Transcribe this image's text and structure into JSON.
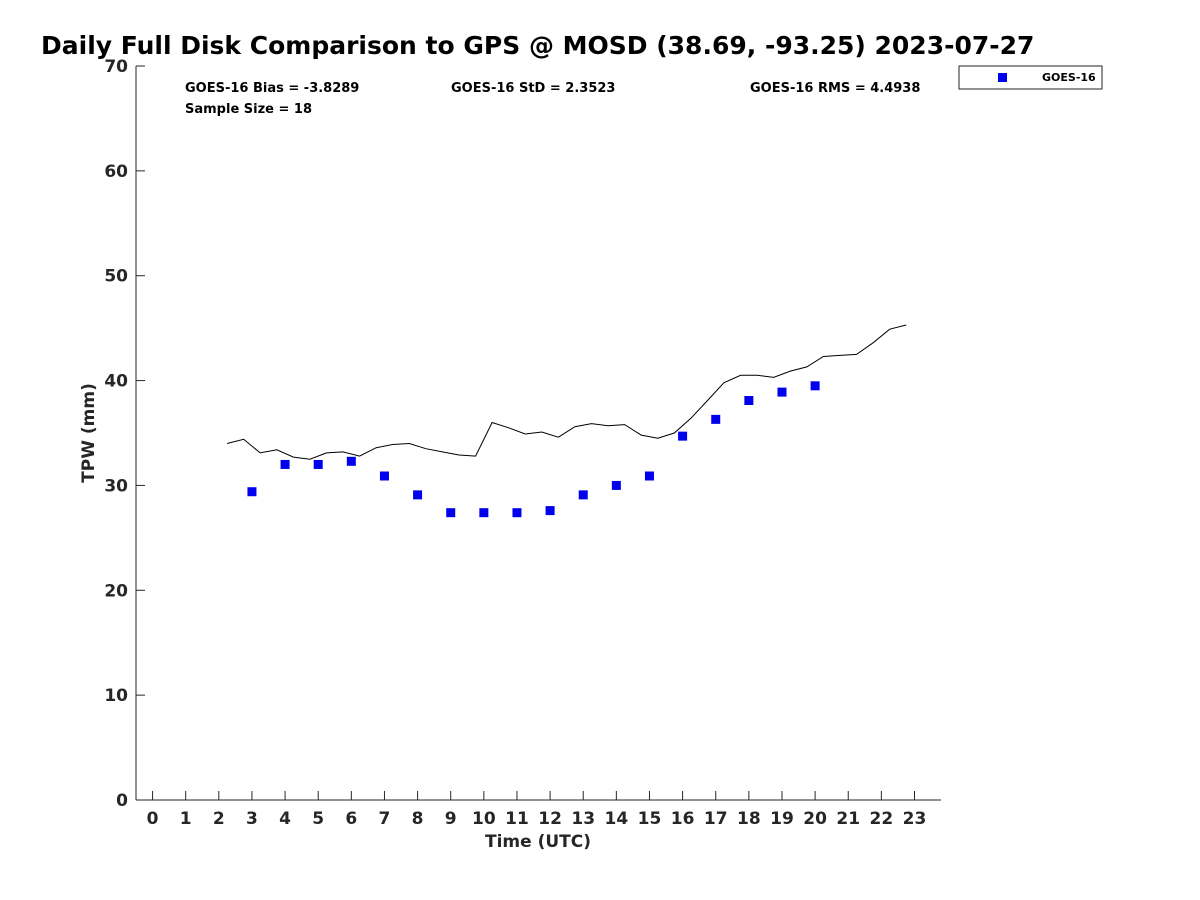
{
  "chart_data": {
    "type": "line+scatter",
    "title": "Daily Full Disk Comparison to GPS @ MOSD (38.69, -93.25) 2023-07-27",
    "xlabel": "Time (UTC)",
    "ylabel": "TPW (mm)",
    "xlim": [
      -0.5,
      23.8
    ],
    "ylim": [
      0,
      70
    ],
    "xticks": [
      0,
      1,
      2,
      3,
      4,
      5,
      6,
      7,
      8,
      9,
      10,
      11,
      12,
      13,
      14,
      15,
      16,
      17,
      18,
      19,
      20,
      21,
      22,
      23
    ],
    "yticks": [
      0,
      10,
      20,
      30,
      40,
      50,
      60,
      70
    ],
    "grid": false,
    "legend_position": "top-right (outside)",
    "stats": {
      "bias": "GOES-16 Bias = -3.8289",
      "std": "GOES-16 StD = 2.3523",
      "rms": "GOES-16 RMS = 4.4938",
      "sample": "Sample Size = 18"
    },
    "series": [
      {
        "type": "line",
        "color": "#000000",
        "x": [
          2.25,
          2.75,
          3.25,
          3.75,
          4.25,
          4.75,
          5.25,
          5.75,
          6.25,
          6.75,
          7.25,
          7.75,
          8.25,
          8.75,
          9.25,
          9.75,
          10.25,
          10.75,
          11.25,
          11.75,
          12.25,
          12.75,
          13.25,
          13.75,
          14.25,
          14.75,
          15.25,
          15.75,
          16.25,
          16.75,
          17.25,
          17.75,
          18.25,
          18.75,
          19.25,
          19.75,
          20.25,
          20.75,
          21.25,
          21.75,
          22.25,
          22.75
        ],
        "y": [
          34.0,
          34.4,
          33.1,
          33.4,
          32.7,
          32.5,
          33.1,
          33.2,
          32.8,
          33.6,
          33.9,
          34.0,
          33.5,
          33.2,
          32.9,
          32.8,
          36.0,
          35.5,
          34.9,
          35.1,
          34.6,
          35.6,
          35.9,
          35.7,
          35.8,
          34.8,
          34.5,
          35.0,
          36.4,
          38.1,
          39.8,
          40.5,
          40.5,
          40.3,
          40.9,
          41.3,
          42.3,
          42.4,
          42.5,
          43.6,
          44.9,
          45.3
        ]
      },
      {
        "name": "GOES-16",
        "type": "scatter",
        "marker": "square",
        "color": "#0000ee",
        "x": [
          3,
          4,
          5,
          6,
          7,
          8,
          9,
          10,
          11,
          12,
          13,
          14,
          15,
          16,
          17,
          18,
          19,
          20
        ],
        "y": [
          29.4,
          32.0,
          32.0,
          32.3,
          30.9,
          29.1,
          27.4,
          27.4,
          27.4,
          27.6,
          29.1,
          30.0,
          30.9,
          34.7,
          36.3,
          38.1,
          38.9,
          39.5
        ]
      }
    ]
  }
}
